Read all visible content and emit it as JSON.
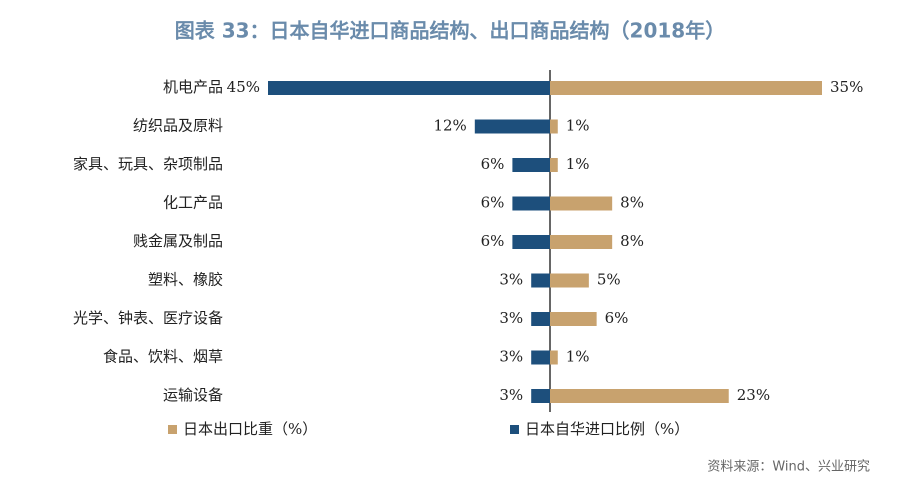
{
  "chart_data": {
    "type": "diverging-bar",
    "title": "图表 33：日本自华进口商品结构、出口商品结构（2018年）",
    "categories": [
      "机电产品",
      "纺织品及原料",
      "家具、玩具、杂项制品",
      "化工产品",
      "贱金属及制品",
      "塑料、橡胶",
      "光学、钟表、医疗设备",
      "食品、饮料、烟草",
      "运输设备"
    ],
    "series": [
      {
        "name": "日本出口比重（%）",
        "color": "#c8a26e",
        "values": [
          35,
          1,
          1,
          8,
          8,
          5,
          6,
          1,
          23
        ],
        "value_labels": [
          "35%",
          "1%",
          "1%",
          "8%",
          "8%",
          "5%",
          "6%",
          "1%",
          "23%"
        ]
      },
      {
        "name": "日本自华进口比例（%）",
        "color": "#1d4f7c",
        "values": [
          45,
          12,
          6,
          6,
          6,
          3,
          3,
          3,
          3
        ],
        "value_labels": [
          "45%",
          "12%",
          "6%",
          "6%",
          "6%",
          "3%",
          "3%",
          "3%",
          "3%"
        ]
      }
    ],
    "source": "资料来源：Wind、兴业研究"
  }
}
